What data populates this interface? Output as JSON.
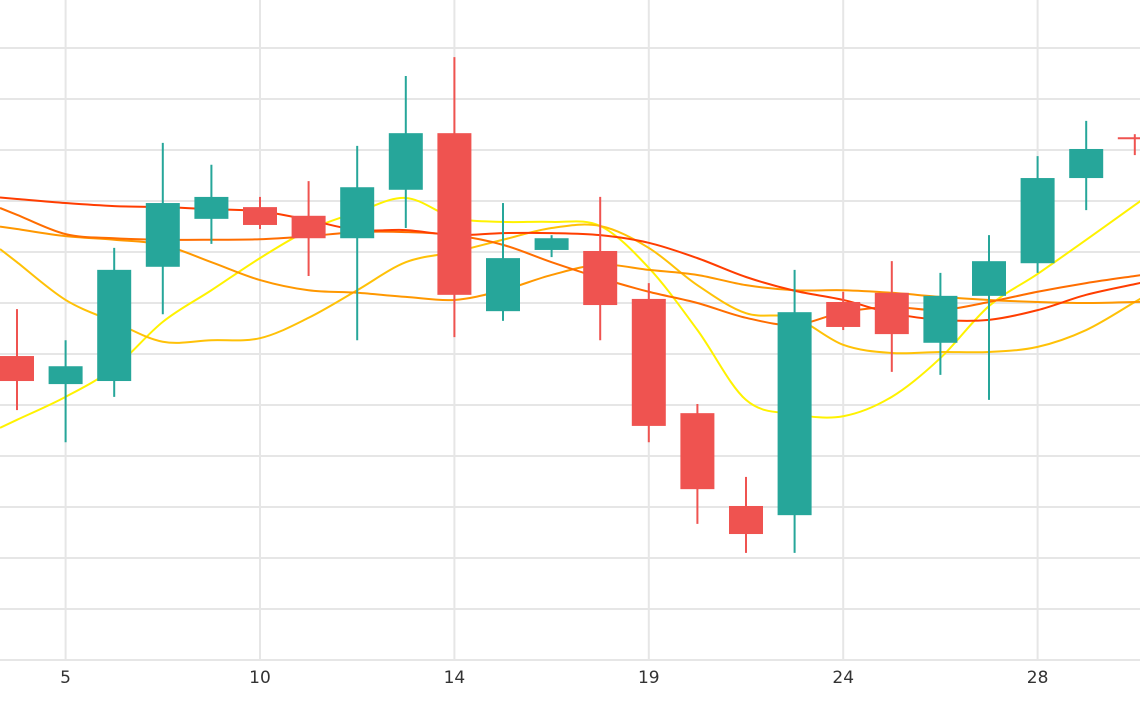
{
  "chart_data": {
    "type": "candlestick",
    "title": "",
    "xlabel": "",
    "ylabel": "",
    "ylim": [
      0,
      12
    ],
    "grid": true,
    "legend": "none",
    "x_ticks": [
      {
        "index": 1,
        "label": "5"
      },
      {
        "index": 5,
        "label": "10"
      },
      {
        "index": 9,
        "label": "14"
      },
      {
        "index": 13,
        "label": "19"
      },
      {
        "index": 17,
        "label": "24"
      },
      {
        "index": 21,
        "label": "28"
      }
    ],
    "candles": [
      {
        "o": 5.96,
        "h": 6.88,
        "l": 4.9,
        "c": 5.47
      },
      {
        "o": 5.41,
        "h": 6.27,
        "l": 4.27,
        "c": 5.76
      },
      {
        "o": 5.47,
        "h": 8.08,
        "l": 5.16,
        "c": 7.65
      },
      {
        "o": 7.71,
        "h": 10.14,
        "l": 6.78,
        "c": 8.96
      },
      {
        "o": 8.65,
        "h": 9.71,
        "l": 8.16,
        "c": 9.08
      },
      {
        "o": 8.88,
        "h": 9.08,
        "l": 8.45,
        "c": 8.53
      },
      {
        "o": 8.71,
        "h": 9.39,
        "l": 7.53,
        "c": 8.27
      },
      {
        "o": 8.27,
        "h": 10.08,
        "l": 6.27,
        "c": 9.27
      },
      {
        "o": 9.22,
        "h": 11.45,
        "l": 8.47,
        "c": 10.33
      },
      {
        "o": 10.33,
        "h": 11.82,
        "l": 6.33,
        "c": 7.16
      },
      {
        "o": 6.84,
        "h": 8.96,
        "l": 6.65,
        "c": 7.88
      },
      {
        "o": 8.04,
        "h": 8.33,
        "l": 7.9,
        "c": 8.27
      },
      {
        "o": 8.02,
        "h": 9.08,
        "l": 6.27,
        "c": 6.96
      },
      {
        "o": 7.08,
        "h": 7.39,
        "l": 4.27,
        "c": 4.59
      },
      {
        "o": 4.84,
        "h": 5.02,
        "l": 2.67,
        "c": 3.35
      },
      {
        "o": 3.02,
        "h": 3.59,
        "l": 2.1,
        "c": 2.47
      },
      {
        "o": 2.84,
        "h": 7.65,
        "l": 2.1,
        "c": 6.82
      },
      {
        "o": 7.02,
        "h": 7.22,
        "l": 6.47,
        "c": 6.53
      },
      {
        "o": 7.2,
        "h": 7.82,
        "l": 5.65,
        "c": 6.39
      },
      {
        "o": 6.22,
        "h": 7.59,
        "l": 5.59,
        "c": 7.14
      },
      {
        "o": 7.14,
        "h": 8.33,
        "l": 5.1,
        "c": 7.82
      },
      {
        "o": 7.78,
        "h": 9.88,
        "l": 7.59,
        "c": 9.45
      },
      {
        "o": 9.45,
        "h": 10.57,
        "l": 8.82,
        "c": 10.02
      },
      {
        "o": 10.25,
        "h": 10.31,
        "l": 9.9,
        "c": 10.24
      }
    ],
    "up_color": "#26a69a",
    "down_color": "#ef5350",
    "series": [
      {
        "id": "ma-yellow",
        "color": "#fff200",
        "values": [
          4.71,
          5.16,
          5.73,
          6.63,
          7.25,
          7.88,
          8.43,
          8.78,
          9.06,
          8.67,
          8.59,
          8.59,
          8.51,
          7.69,
          6.47,
          5.1,
          4.82,
          4.78,
          5.16,
          5.92,
          6.94,
          7.57,
          8.24,
          8.92
        ]
      },
      {
        "id": "ma-gold",
        "color": "#ffc107",
        "values": [
          7.8,
          7.06,
          6.63,
          6.24,
          6.27,
          6.31,
          6.71,
          7.25,
          7.8,
          8.0,
          8.24,
          8.47,
          8.51,
          8.08,
          7.35,
          6.8,
          6.71,
          6.18,
          6.02,
          6.04,
          6.04,
          6.14,
          6.47,
          7.02
        ]
      },
      {
        "id": "ma-orange",
        "color": "#ff9800",
        "values": [
          8.45,
          8.31,
          8.24,
          8.14,
          7.8,
          7.45,
          7.25,
          7.2,
          7.12,
          7.06,
          7.25,
          7.55,
          7.75,
          7.65,
          7.55,
          7.35,
          7.25,
          7.25,
          7.2,
          7.12,
          7.06,
          7.02,
          7.0,
          7.02
        ]
      },
      {
        "id": "ma-dark-orange",
        "color": "#ff6d00",
        "values": [
          8.73,
          8.35,
          8.27,
          8.24,
          8.24,
          8.25,
          8.31,
          8.39,
          8.39,
          8.33,
          8.14,
          7.8,
          7.49,
          7.22,
          7.0,
          6.71,
          6.57,
          6.82,
          6.92,
          6.86,
          7.02,
          7.22,
          7.39,
          7.53
        ]
      },
      {
        "id": "ma-red",
        "color": "#ff3d00",
        "values": [
          9.04,
          8.96,
          8.9,
          8.88,
          8.84,
          8.8,
          8.63,
          8.43,
          8.43,
          8.33,
          8.37,
          8.37,
          8.33,
          8.18,
          7.88,
          7.51,
          7.24,
          7.06,
          6.8,
          6.67,
          6.67,
          6.86,
          7.16,
          7.37
        ]
      }
    ]
  }
}
